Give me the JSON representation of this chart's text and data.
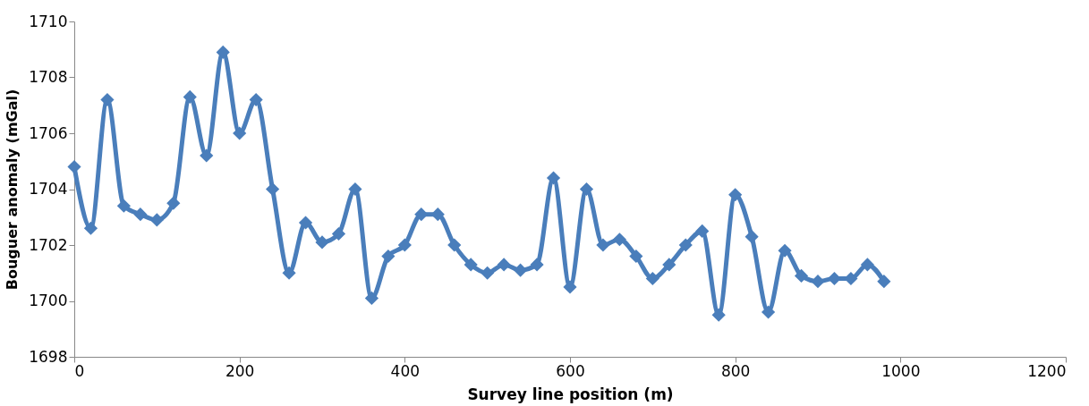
{
  "chart_data": {
    "type": "line",
    "xlabel": "Survey line position (m)",
    "ylabel": "Bouguer anomaly (mGal)",
    "x": [
      0,
      20,
      40,
      60,
      80,
      100,
      120,
      140,
      160,
      180,
      200,
      220,
      240,
      260,
      280,
      300,
      320,
      340,
      360,
      380,
      400,
      420,
      440,
      460,
      480,
      500,
      520,
      540,
      560,
      580,
      600,
      620,
      640,
      660,
      680,
      700,
      720,
      740,
      760,
      780,
      800,
      820,
      840,
      860,
      880,
      900,
      920,
      940,
      960,
      980
    ],
    "series": [
      {
        "color": "#4a7ebb",
        "values": [
          1704.8,
          1702.6,
          1707.2,
          1703.4,
          1703.1,
          1702.9,
          1703.5,
          1707.3,
          1705.2,
          1708.9,
          1706.0,
          1707.2,
          1704.0,
          1701.0,
          1702.8,
          1702.1,
          1702.4,
          1704.0,
          1700.1,
          1701.6,
          1702.0,
          1703.1,
          1703.1,
          1702.0,
          1701.3,
          1701.0,
          1701.3,
          1701.1,
          1701.3,
          1704.4,
          1700.5,
          1704.0,
          1702.0,
          1702.2,
          1701.6,
          1700.8,
          1701.3,
          1702.0,
          1702.5,
          1699.5,
          1703.8,
          1702.3,
          1699.6,
          1701.8,
          1700.9,
          1700.7,
          1700.8,
          1700.8,
          1701.3,
          1700.7
        ]
      }
    ],
    "xlim": [
      0,
      1200
    ],
    "xticks": [
      0,
      200,
      400,
      600,
      800,
      1000,
      1200
    ],
    "ylim": [
      1698,
      1710
    ],
    "yticks": [
      1698,
      1700,
      1702,
      1704,
      1706,
      1708,
      1710
    ],
    "grid": false,
    "marker": "diamond",
    "line_style": "solid"
  }
}
